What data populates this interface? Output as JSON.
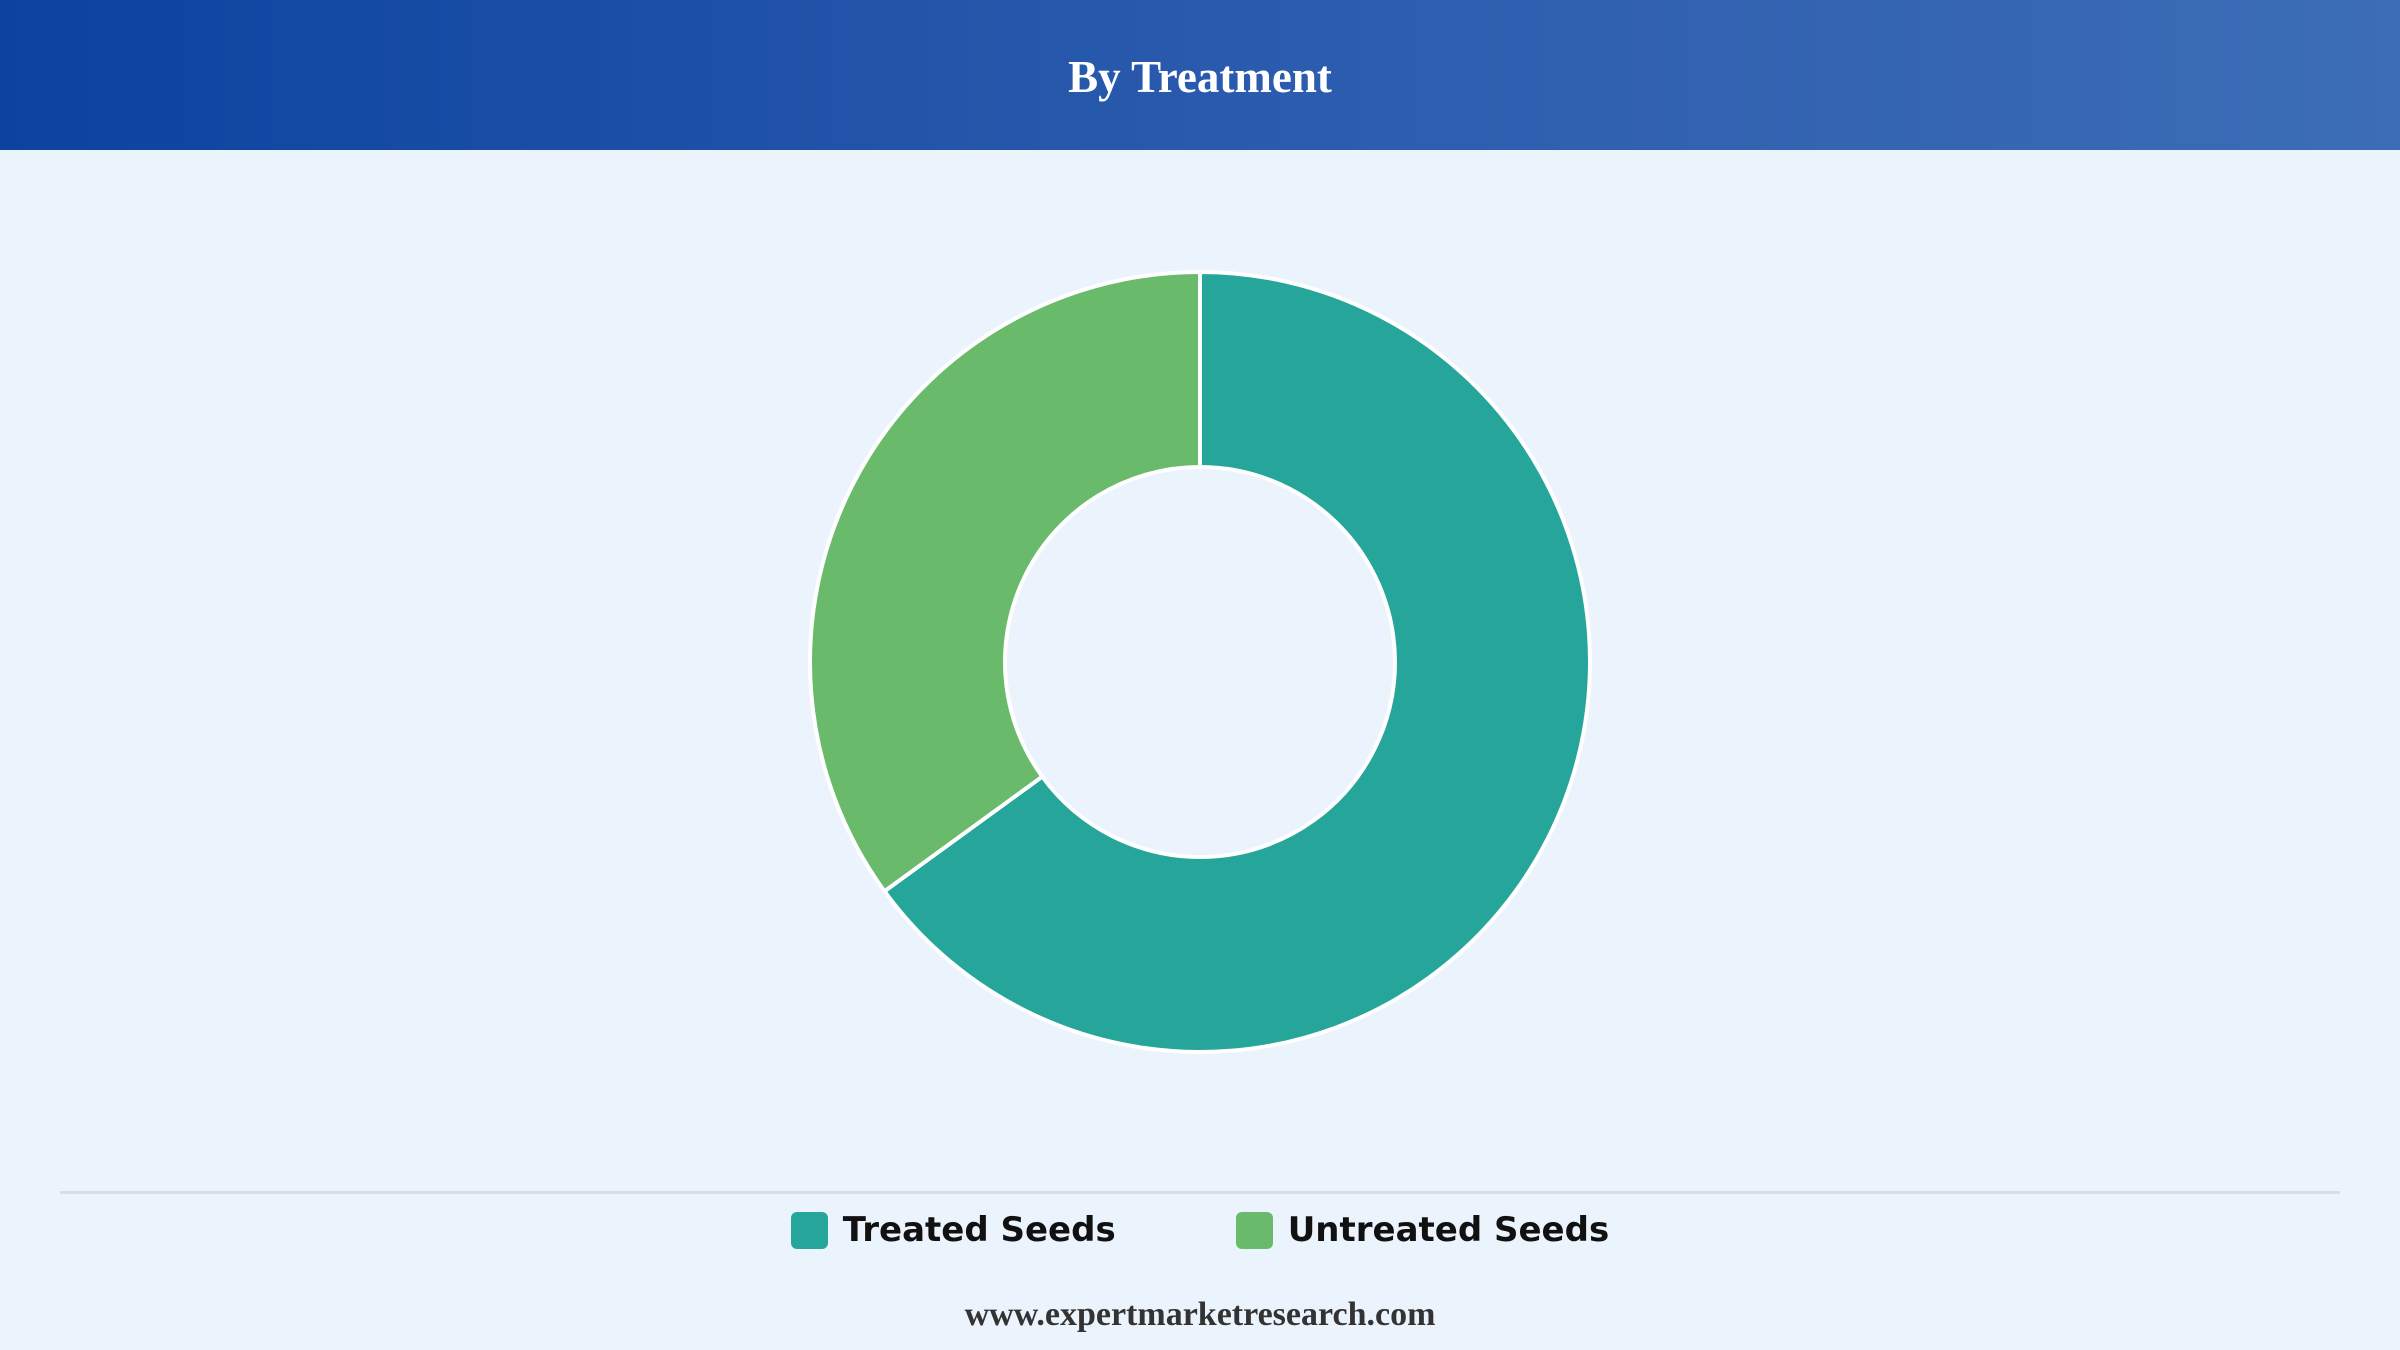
{
  "header": {
    "title": "By Treatment"
  },
  "chart_data": {
    "type": "pie",
    "subtype": "donut",
    "categories": [
      "Treated Seeds",
      "Untreated Seeds"
    ],
    "values": [
      65,
      35
    ],
    "colors": [
      "#26a69a",
      "#6aba6c"
    ],
    "legend": "bottom-center",
    "grid": false
  },
  "legend": {
    "items": [
      {
        "label": "Treated Seeds",
        "color": "#26a69a"
      },
      {
        "label": "Untreated Seeds",
        "color": "#6aba6c"
      }
    ]
  },
  "footer": {
    "website": "www.expertmarketresearch.com"
  },
  "colors": {
    "background": "#ebf3fc",
    "header_start": "#0c43a0",
    "header_end": "#3c6db6"
  }
}
